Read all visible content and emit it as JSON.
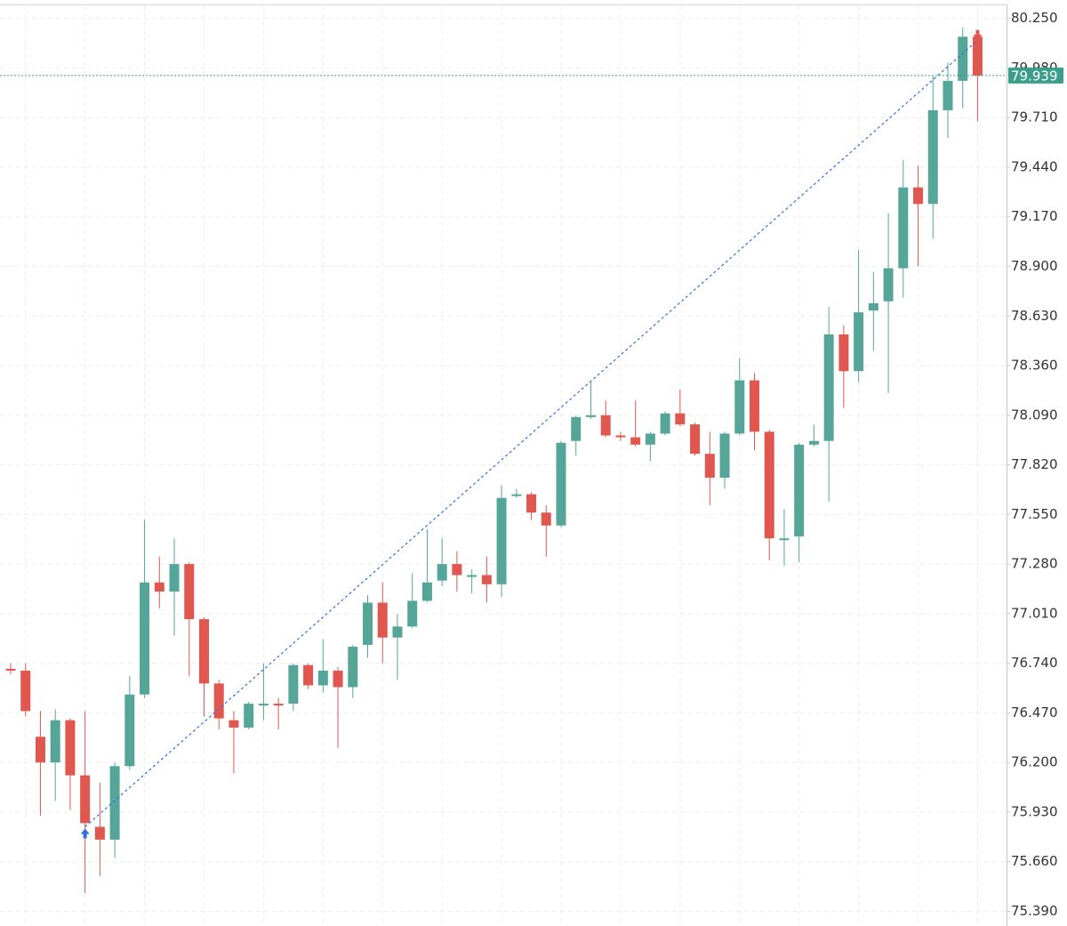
{
  "chart_data": {
    "type": "candlestick",
    "open": [
      76.71,
      76.7,
      76.34,
      76.2,
      76.43,
      76.13,
      75.85,
      75.78,
      76.18,
      76.57,
      77.18,
      77.13,
      77.28,
      76.98,
      76.63,
      76.43,
      76.39,
      76.51,
      76.52,
      76.52,
      76.73,
      76.62,
      76.7,
      76.61,
      76.84,
      77.07,
      76.88,
      76.94,
      77.08,
      77.19,
      77.28,
      77.21,
      77.22,
      77.17,
      77.65,
      77.66,
      77.56,
      77.49,
      77.95,
      78.08,
      78.09,
      77.98,
      77.97,
      77.93,
      77.99,
      78.1,
      78.04,
      77.88,
      77.75,
      77.99,
      78.28,
      78.0,
      77.41,
      77.43,
      77.93,
      77.95,
      78.53,
      78.33,
      78.66,
      78.71,
      78.89,
      79.33,
      79.24,
      79.75,
      79.91,
      80.15
    ],
    "high": [
      76.74,
      76.74,
      76.48,
      76.49,
      76.44,
      76.48,
      76.09,
      76.2,
      76.67,
      77.52,
      77.32,
      77.42,
      77.29,
      76.99,
      76.65,
      76.48,
      76.53,
      76.74,
      76.55,
      76.74,
      76.74,
      76.87,
      76.72,
      76.84,
      77.11,
      77.18,
      77.01,
      77.23,
      77.47,
      77.42,
      77.35,
      77.25,
      77.32,
      77.71,
      77.69,
      77.67,
      77.6,
      77.95,
      78.09,
      78.27,
      78.17,
      78.0,
      78.17,
      78.0,
      78.11,
      78.23,
      78.05,
      78.0,
      78.0,
      78.4,
      78.32,
      78.01,
      77.58,
      77.94,
      78.04,
      78.68,
      78.58,
      78.99,
      78.87,
      79.19,
      79.48,
      79.45,
      79.94,
      80.01,
      80.2,
      80.19
    ],
    "low": [
      76.68,
      76.45,
      75.91,
      75.99,
      75.94,
      75.49,
      75.58,
      75.68,
      76.16,
      76.55,
      77.04,
      76.89,
      76.67,
      76.45,
      76.38,
      76.14,
      76.38,
      76.43,
      76.38,
      76.48,
      76.6,
      76.58,
      76.28,
      76.55,
      76.77,
      76.74,
      76.65,
      76.93,
      77.07,
      77.16,
      77.13,
      77.12,
      77.07,
      77.1,
      77.64,
      77.52,
      77.32,
      77.48,
      77.87,
      78.07,
      77.97,
      77.95,
      77.92,
      77.84,
      77.98,
      78.03,
      77.87,
      77.6,
      77.69,
      77.98,
      77.9,
      77.3,
      77.27,
      77.29,
      77.92,
      77.62,
      78.13,
      78.27,
      78.44,
      78.21,
      78.73,
      78.9,
      79.05,
      79.6,
      79.76,
      79.69
    ],
    "close": [
      76.7,
      76.48,
      76.2,
      76.43,
      76.13,
      75.87,
      75.78,
      76.18,
      76.57,
      77.18,
      77.13,
      77.28,
      76.98,
      76.63,
      76.44,
      76.39,
      76.52,
      76.52,
      76.51,
      76.73,
      76.62,
      76.7,
      76.61,
      76.83,
      77.07,
      76.88,
      76.94,
      77.08,
      77.18,
      77.28,
      77.22,
      77.22,
      77.17,
      77.64,
      77.66,
      77.56,
      77.49,
      77.94,
      78.08,
      78.09,
      77.98,
      77.97,
      77.93,
      77.99,
      78.1,
      78.04,
      77.88,
      77.75,
      77.99,
      78.28,
      78.0,
      77.42,
      77.42,
      77.93,
      77.95,
      78.53,
      78.33,
      78.65,
      78.7,
      78.89,
      79.33,
      79.24,
      79.75,
      79.91,
      80.15,
      79.939
    ],
    "up_color": "#55a698",
    "down_color": "#e0574f",
    "ylim": [
      75.31,
      80.35
    ],
    "yticks": [
      {
        "value": 80.25,
        "label": "80.250"
      },
      {
        "value": 79.98,
        "label": "79.980"
      },
      {
        "value": 79.71,
        "label": "79.710"
      },
      {
        "value": 79.44,
        "label": "79.440"
      },
      {
        "value": 79.17,
        "label": "79.170"
      },
      {
        "value": 78.9,
        "label": "78.900"
      },
      {
        "value": 78.63,
        "label": "78.630"
      },
      {
        "value": 78.36,
        "label": "78.360"
      },
      {
        "value": 78.09,
        "label": "78.090"
      },
      {
        "value": 77.82,
        "label": "77.820"
      },
      {
        "value": 77.55,
        "label": "77.550"
      },
      {
        "value": 77.28,
        "label": "77.280"
      },
      {
        "value": 77.01,
        "label": "77.010"
      },
      {
        "value": 76.74,
        "label": "76.740"
      },
      {
        "value": 76.47,
        "label": "76.470"
      },
      {
        "value": 76.2,
        "label": "76.200"
      },
      {
        "value": 75.93,
        "label": "75.930"
      },
      {
        "value": 75.66,
        "label": "75.660"
      },
      {
        "value": 75.39,
        "label": "75.390"
      }
    ],
    "grid": true,
    "last_price": 79.939,
    "last_price_color": "#3d9d8c",
    "trendline": {
      "start_index": 5,
      "start_value": 75.85,
      "end_index": 65,
      "end_value": 80.13,
      "color": "#2f6fe0"
    }
  }
}
